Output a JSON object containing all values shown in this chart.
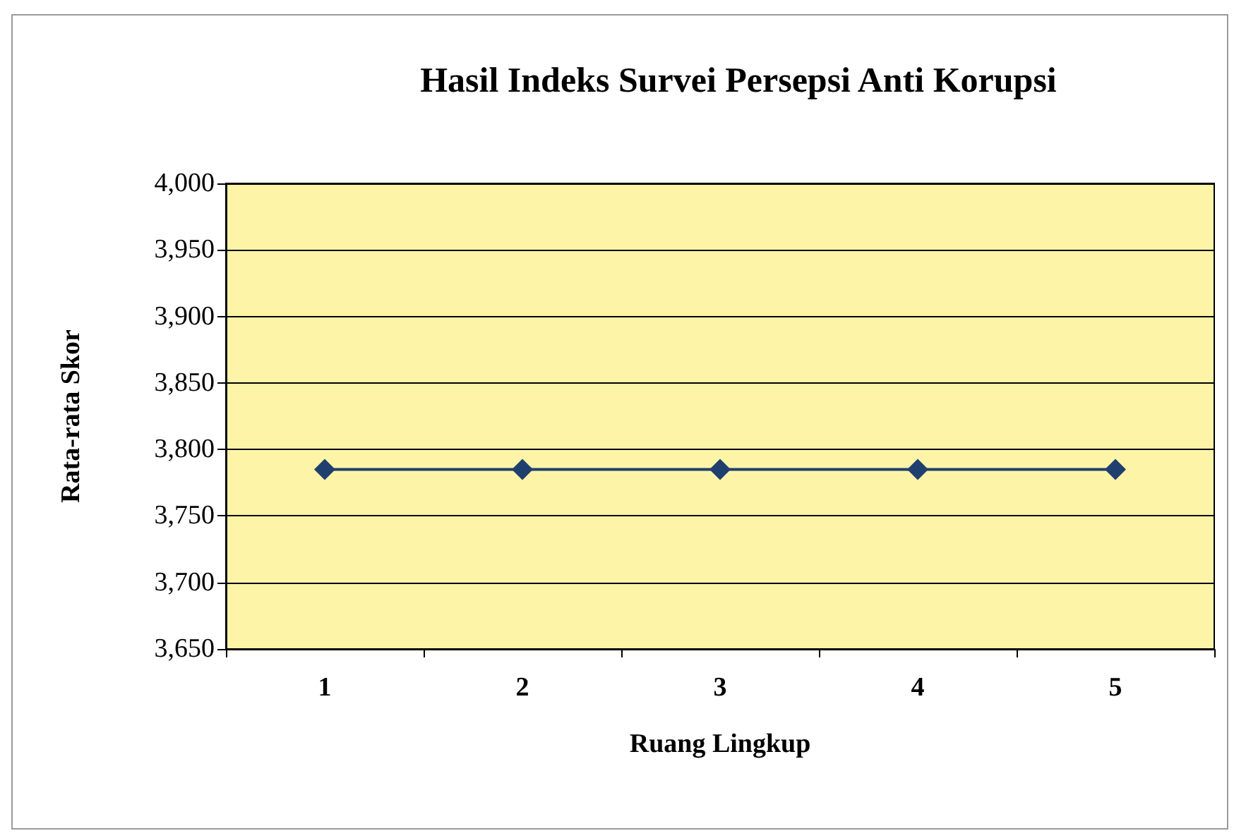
{
  "chart_data": {
    "type": "line",
    "title": "Hasil Indeks Survei Persepsi Anti Korupsi",
    "xlabel": "Ruang Lingkup",
    "ylabel": "Rata-rata Skor",
    "categories": [
      "1",
      "2",
      "3",
      "4",
      "5"
    ],
    "series": [
      {
        "color": "#1f3f6e",
        "values": [
          3785,
          3785,
          3785,
          3785,
          3785
        ]
      }
    ],
    "ylim": [
      3650,
      4000
    ],
    "yticks": [
      {
        "value": 3650,
        "label": "3,650"
      },
      {
        "value": 3700,
        "label": "3,700"
      },
      {
        "value": 3750,
        "label": "3,750"
      },
      {
        "value": 3800,
        "label": "3,800"
      },
      {
        "value": 3850,
        "label": "3,850"
      },
      {
        "value": 3900,
        "label": "3,900"
      },
      {
        "value": 3950,
        "label": "3,950"
      },
      {
        "value": 4000,
        "label": "4,000"
      }
    ],
    "grid": "y",
    "marker": "diamond",
    "line_style": "solid"
  }
}
